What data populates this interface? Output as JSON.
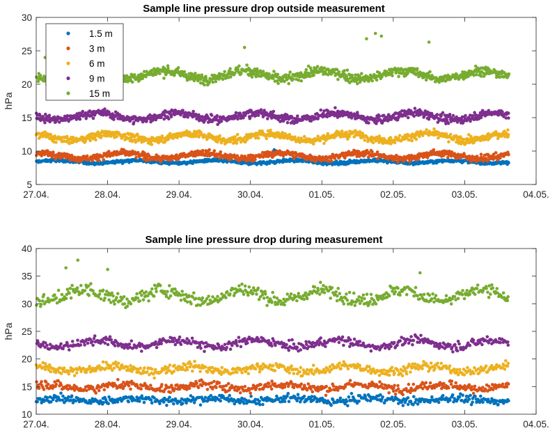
{
  "colors": {
    "1.5 m": "#0072BD",
    "3 m": "#D95319",
    "6 m": "#EDB120",
    "9 m": "#7E2F8E",
    "15 m": "#77AC30"
  },
  "chart_data": [
    {
      "type": "scatter",
      "title": "Sample line pressure drop outside measurement",
      "xlabel": "",
      "ylabel": "hPa",
      "xlim": [
        "27.04.",
        "04.05."
      ],
      "ylim": [
        5,
        30
      ],
      "x_tick_labels": [
        "27.04.",
        "28.04.",
        "29.04.",
        "30.04.",
        "01.05.",
        "02.05.",
        "03.05.",
        "04.05."
      ],
      "y_ticks": [
        5,
        10,
        15,
        20,
        25,
        30
      ],
      "data_x_range": [
        "27.04.",
        "03.05."
      ],
      "legend": {
        "placement": "top-left",
        "entries": [
          "1.5 m",
          "3 m",
          "6 m",
          "9 m",
          "15 m"
        ]
      },
      "series": [
        {
          "name": "1.5 m",
          "mean": 8.4,
          "spread": 0.3,
          "wave": 0.2
        },
        {
          "name": "3 m",
          "mean": 9.3,
          "spread": 0.6,
          "wave": 0.4
        },
        {
          "name": "6 m",
          "mean": 12.1,
          "spread": 0.7,
          "wave": 0.5
        },
        {
          "name": "9 m",
          "mean": 15.2,
          "spread": 0.75,
          "wave": 0.5
        },
        {
          "name": "15 m",
          "mean": 21.4,
          "spread": 0.9,
          "wave": 0.6
        }
      ],
      "outliers": [
        {
          "series": "15 m",
          "x": "01.05. 15:00",
          "y": 26.8
        },
        {
          "series": "15 m",
          "x": "01.05. 18:00",
          "y": 27.6
        },
        {
          "series": "15 m",
          "x": "01.05. 20:00",
          "y": 27.2
        },
        {
          "series": "15 m",
          "x": "02.05. 12:00",
          "y": 26.3
        },
        {
          "series": "15 m",
          "x": "27.04. 03:00",
          "y": 24.0
        },
        {
          "series": "15 m",
          "x": "29.04. 22:00",
          "y": 25.5
        },
        {
          "series": "1.5 m",
          "x": "30.04. 08:00",
          "y": 10.2
        }
      ]
    },
    {
      "type": "scatter",
      "title": "Sample line pressure drop during measurement",
      "xlabel": "",
      "ylabel": "hPa",
      "xlim": [
        "27.04.",
        "04.05."
      ],
      "ylim": [
        10,
        40
      ],
      "x_tick_labels": [
        "27.04.",
        "28.04.",
        "29.04.",
        "30.04.",
        "01.05.",
        "02.05.",
        "03.05.",
        "04.05."
      ],
      "y_ticks": [
        10,
        15,
        20,
        25,
        30,
        35,
        40
      ],
      "data_x_range": [
        "27.04.",
        "03.05."
      ],
      "series": [
        {
          "name": "1.5 m",
          "mean": 12.6,
          "spread": 0.9,
          "wave": 0.3
        },
        {
          "name": "3 m",
          "mean": 15.0,
          "spread": 1.0,
          "wave": 0.4
        },
        {
          "name": "6 m",
          "mean": 18.2,
          "spread": 1.0,
          "wave": 0.5
        },
        {
          "name": "9 m",
          "mean": 22.8,
          "spread": 1.0,
          "wave": 0.6
        },
        {
          "name": "15 m",
          "mean": 31.5,
          "spread": 1.5,
          "wave": 1.0
        }
      ],
      "outliers": [
        {
          "series": "15 m",
          "x": "27.04. 10:00",
          "y": 36.5
        },
        {
          "series": "15 m",
          "x": "27.04. 14:00",
          "y": 37.9
        },
        {
          "series": "15 m",
          "x": "28.04. 00:00",
          "y": 36.2
        },
        {
          "series": "15 m",
          "x": "02.05. 09:00",
          "y": 35.6
        }
      ]
    }
  ]
}
